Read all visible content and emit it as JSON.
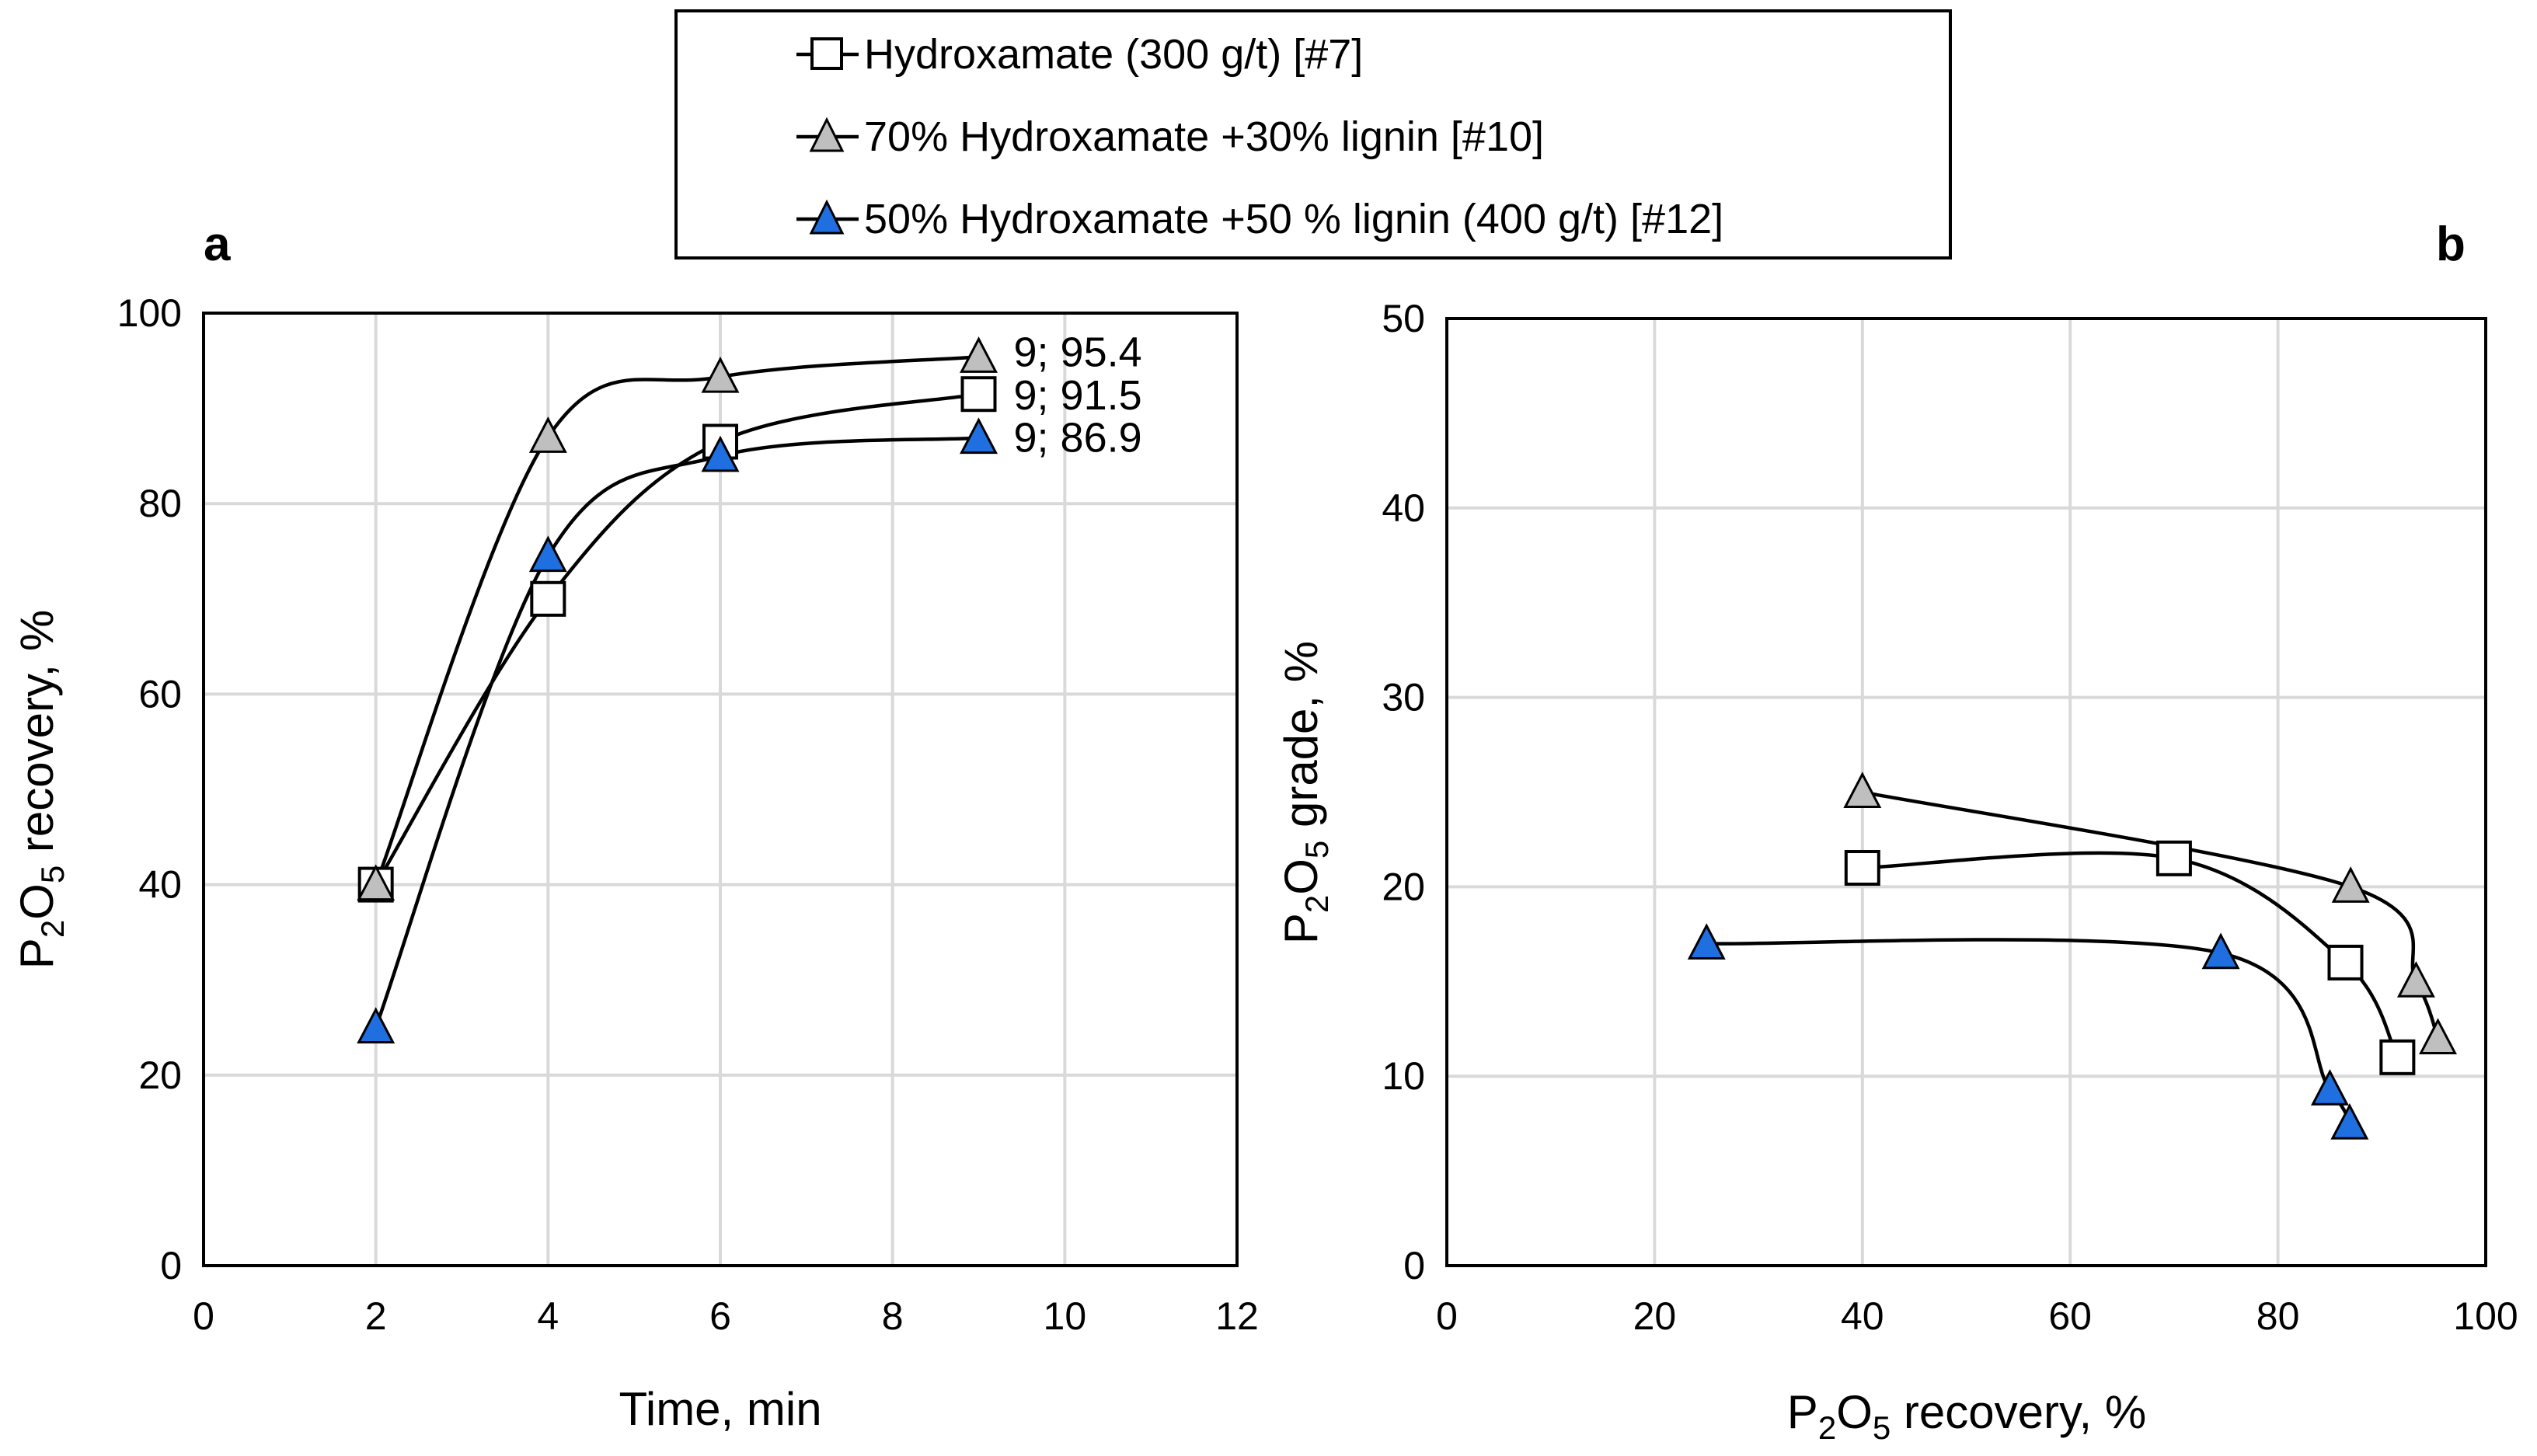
{
  "legend": {
    "items": [
      {
        "label": "Hydroxamate (300 g/t) [#7]",
        "marker": "square",
        "fill": "#ffffff"
      },
      {
        "label": "70% Hydroxamate +30% lignin [#10]",
        "marker": "triangle",
        "fill": "#bfbfbf"
      },
      {
        "label": "50% Hydroxamate +50 % lignin (400 g/t) [#12]",
        "marker": "triangle",
        "fill": "#1f6fe0"
      }
    ]
  },
  "colors": {
    "white_marker": "#ffffff",
    "gray_marker": "#bfbfbf",
    "blue_marker": "#1f6fe0",
    "grid": "#d9d9d9"
  },
  "chart_data": [
    {
      "type": "line",
      "panel": "a",
      "title": "",
      "xlabel": "Time, min",
      "ylabel": {
        "prefix": "P",
        "sub1": "2",
        "mid": "O",
        "sub2": "5",
        "suffix": " recovery, %"
      },
      "xlim": [
        0,
        12
      ],
      "ylim": [
        0,
        100
      ],
      "xticks": [
        0,
        2,
        4,
        6,
        8,
        10,
        12
      ],
      "yticks": [
        0,
        20,
        40,
        60,
        80,
        100
      ],
      "grid": true,
      "series": [
        {
          "name": "Hydroxamate (300 g/t) [#7]",
          "marker": "square",
          "fill": "#ffffff",
          "x": [
            2,
            4,
            6,
            9
          ],
          "y": [
            40,
            70,
            86.5,
            91.5
          ]
        },
        {
          "name": "70% Hydroxamate +30% lignin [#10]",
          "marker": "triangle",
          "fill": "#bfbfbf",
          "x": [
            2,
            4,
            6,
            9
          ],
          "y": [
            40,
            87,
            93.3,
            95.4
          ]
        },
        {
          "name": "50% Hydroxamate +50 % lignin (400 g/t) [#12]",
          "marker": "triangle",
          "fill": "#1f6fe0",
          "x": [
            2,
            4,
            6,
            9
          ],
          "y": [
            25,
            74.5,
            85,
            86.9
          ]
        }
      ],
      "annotations": [
        {
          "text": "9; 95.4",
          "series": 1,
          "x": 9,
          "y": 95.4
        },
        {
          "text": "9; 91.5",
          "series": 0,
          "x": 9,
          "y": 91.5
        },
        {
          "text": "9; 86.9",
          "series": 2,
          "x": 9,
          "y": 86.9
        }
      ]
    },
    {
      "type": "line",
      "panel": "b",
      "title": "",
      "xlabel": {
        "prefix": "P",
        "sub1": "2",
        "mid": "O",
        "sub2": "5",
        "suffix": " recovery, %"
      },
      "ylabel": {
        "prefix": "P",
        "sub1": "2",
        "mid": "O",
        "sub2": "5",
        "suffix": " grade, %"
      },
      "xlim": [
        0,
        100
      ],
      "ylim": [
        0,
        50
      ],
      "xticks": [
        0,
        20,
        40,
        60,
        80,
        100
      ],
      "yticks": [
        0,
        10,
        20,
        30,
        40,
        50
      ],
      "grid": true,
      "series": [
        {
          "name": "Hydroxamate (300 g/t) [#7]",
          "marker": "square",
          "fill": "#ffffff",
          "x": [
            40,
            70,
            86.5,
            91.5
          ],
          "y": [
            21,
            21.5,
            16,
            11
          ]
        },
        {
          "name": "70% Hydroxamate +30% lignin [#10]",
          "marker": "triangle",
          "fill": "#bfbfbf",
          "x": [
            40,
            87,
            93.3,
            95.4
          ],
          "y": [
            25,
            20,
            15,
            12
          ]
        },
        {
          "name": "50% Hydroxamate +50 % lignin (400 g/t) [#12]",
          "marker": "triangle",
          "fill": "#1f6fe0",
          "x": [
            25,
            74.5,
            85,
            86.9
          ],
          "y": [
            17,
            16.5,
            9.3,
            7.5
          ]
        }
      ],
      "annotations": []
    }
  ]
}
